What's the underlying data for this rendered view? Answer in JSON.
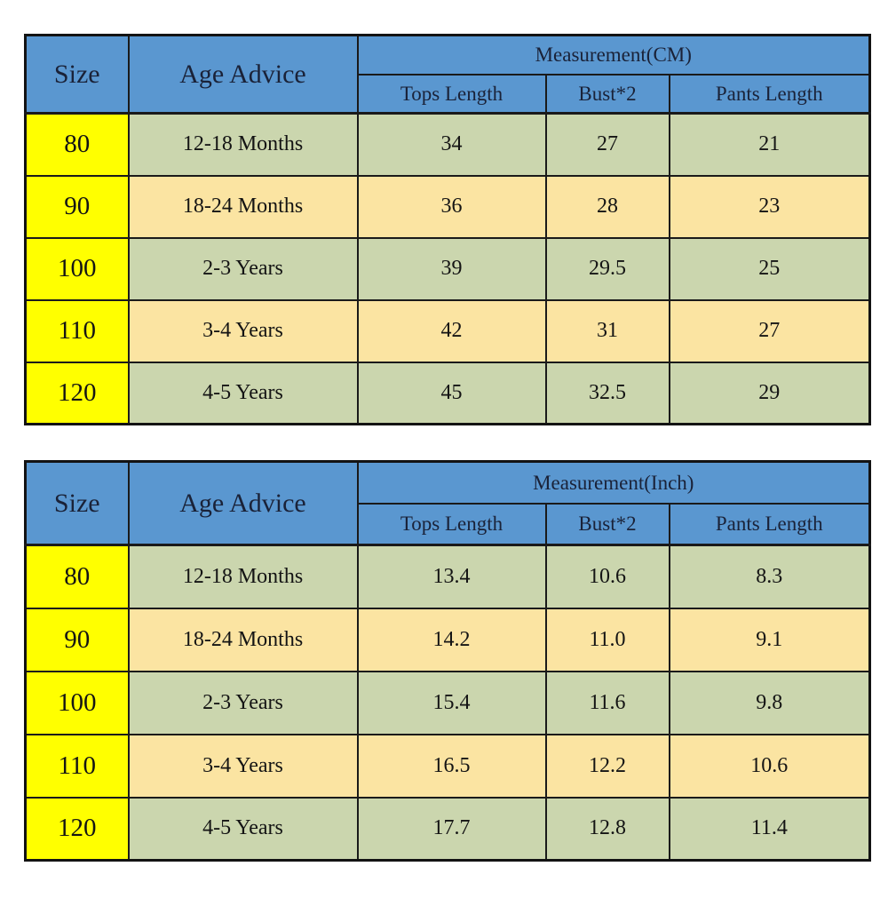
{
  "chart_data": [
    {
      "type": "table",
      "title": "Measurement(CM)",
      "columns": [
        "Size",
        "Age Advice",
        "Tops Length",
        "Bust*2",
        "Pants Length"
      ],
      "rows": [
        [
          "80",
          "12-18 Months",
          "34",
          "27",
          "21"
        ],
        [
          "90",
          "18-24 Months",
          "36",
          "28",
          "23"
        ],
        [
          "100",
          "2-3 Years",
          "39",
          "29.5",
          "25"
        ],
        [
          "110",
          "3-4 Years",
          "42",
          "31",
          "27"
        ],
        [
          "120",
          "4-5 Years",
          "45",
          "32.5",
          "29"
        ]
      ]
    },
    {
      "type": "table",
      "title": "Measurement(Inch)",
      "columns": [
        "Size",
        "Age Advice",
        "Tops Length",
        "Bust*2",
        "Pants Length"
      ],
      "rows": [
        [
          "80",
          "12-18 Months",
          "13.4",
          "10.6",
          "8.3"
        ],
        [
          "90",
          "18-24 Months",
          "14.2",
          "11.0",
          "9.1"
        ],
        [
          "100",
          "2-3 Years",
          "15.4",
          "11.6",
          "9.8"
        ],
        [
          "110",
          "3-4 Years",
          "16.5",
          "12.2",
          "10.6"
        ],
        [
          "120",
          "4-5 Years",
          "17.7",
          "12.8",
          "11.4"
        ]
      ]
    }
  ],
  "colors": {
    "header_blue": "#5a97d0",
    "size_column_yellow": "#ffff00",
    "row_green": "#cbd6ae",
    "row_tan": "#fbe4a2",
    "border": "#1a1a1a",
    "header_text": "#1a2238",
    "data_text": "#141414"
  },
  "tables": [
    {
      "size_header": "Size",
      "age_header": "Age Advice",
      "measurement_label": "Measurement(CM)",
      "sub_headers": [
        "Tops Length",
        "Bust*2",
        "Pants Length"
      ],
      "rows": [
        {
          "size": "80",
          "age": "12-18 Months",
          "tops": "34",
          "bust": "27",
          "pants": "21"
        },
        {
          "size": "90",
          "age": "18-24 Months",
          "tops": "36",
          "bust": "28",
          "pants": "23"
        },
        {
          "size": "100",
          "age": "2-3 Years",
          "tops": "39",
          "bust": "29.5",
          "pants": "25"
        },
        {
          "size": "110",
          "age": "3-4 Years",
          "tops": "42",
          "bust": "31",
          "pants": "27"
        },
        {
          "size": "120",
          "age": "4-5 Years",
          "tops": "45",
          "bust": "32.5",
          "pants": "29"
        }
      ]
    },
    {
      "size_header": "Size",
      "age_header": "Age Advice",
      "measurement_label": "Measurement(Inch)",
      "sub_headers": [
        "Tops Length",
        "Bust*2",
        "Pants Length"
      ],
      "rows": [
        {
          "size": "80",
          "age": "12-18 Months",
          "tops": "13.4",
          "bust": "10.6",
          "pants": "8.3"
        },
        {
          "size": "90",
          "age": "18-24 Months",
          "tops": "14.2",
          "bust": "11.0",
          "pants": "9.1"
        },
        {
          "size": "100",
          "age": "2-3 Years",
          "tops": "15.4",
          "bust": "11.6",
          "pants": "9.8"
        },
        {
          "size": "110",
          "age": "3-4 Years",
          "tops": "16.5",
          "bust": "12.2",
          "pants": "10.6"
        },
        {
          "size": "120",
          "age": "4-5 Years",
          "tops": "17.7",
          "bust": "12.8",
          "pants": "11.4"
        }
      ]
    }
  ]
}
